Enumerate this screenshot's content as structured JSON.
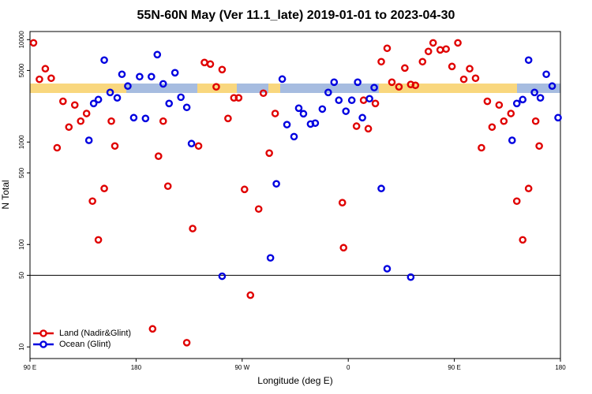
{
  "chart_data": {
    "type": "scatter",
    "title": "55N-60N May (Ver 11.1_late)   2019-01-01 to 2023-04-30",
    "x_label": "Longitude (deg E)",
    "y_label": "N Total",
    "xlim": [
      90,
      540
    ],
    "xticks": [
      {
        "value": 90,
        "label": "90 E"
      },
      {
        "value": 180,
        "label": "180"
      },
      {
        "value": 270,
        "label": "90 W"
      },
      {
        "value": 360,
        "label": "0"
      },
      {
        "value": 450,
        "label": "90 E"
      },
      {
        "value": 540,
        "label": "180"
      }
    ],
    "ylim": [
      7.7,
      12000
    ],
    "yticks": [
      10,
      50,
      100,
      500,
      1000,
      5000,
      10000
    ],
    "y_log": true,
    "reference_line": 50,
    "legend": "lower left",
    "series": [
      {
        "name": "Land (Nadir&Glint)",
        "color": "#e00000",
        "x": [
          93,
          98,
          103,
          108,
          113,
          118,
          123,
          128,
          133,
          138,
          143,
          148,
          153,
          159,
          162,
          194,
          199,
          203,
          207,
          223,
          228,
          233,
          238,
          243,
          248,
          253,
          258,
          263,
          267,
          272,
          277,
          284,
          288,
          293,
          298,
          355,
          356,
          367,
          373,
          377,
          383,
          388,
          393,
          397,
          403,
          408,
          413,
          417,
          423,
          428,
          432,
          438,
          443,
          448,
          453,
          458,
          463,
          468,
          473,
          478,
          482,
          488,
          492,
          498,
          503,
          508,
          513,
          519,
          522
        ],
        "values": [
          9300,
          4100,
          5200,
          4200,
          880,
          2500,
          1400,
          2300,
          1600,
          1900,
          265,
          111,
          352,
          1600,
          915,
          15,
          728,
          1600,
          371,
          11,
          143,
          915,
          5980,
          5770,
          3460,
          5100,
          1700,
          2700,
          2700,
          345,
          32,
          222,
          3000,
          780,
          1900,
          256,
          93,
          1430,
          2560,
          1350,
          2380,
          6090,
          8230,
          3840,
          3460,
          5280,
          3650,
          3580,
          6090,
          7670,
          9300,
          7940,
          8090,
          5470,
          9300,
          4100,
          5200,
          4200,
          880,
          2500,
          1400,
          2300,
          1600,
          1900,
          265,
          111,
          352,
          1600,
          915
        ]
      },
      {
        "name": "Ocean (Glint)",
        "color": "#0000e0",
        "x": [
          140,
          144,
          148,
          153,
          158,
          164,
          168,
          173,
          178,
          183,
          188,
          193,
          198,
          203,
          208,
          213,
          218,
          223,
          227,
          253,
          294,
          299,
          304,
          308,
          314,
          318,
          322,
          328,
          332,
          338,
          343,
          348,
          352,
          358,
          363,
          368,
          372,
          378,
          382,
          388,
          393,
          413,
          499,
          503,
          508,
          513,
          518,
          523,
          528,
          533,
          538
        ],
        "values": [
          1040,
          2380,
          2600,
          6310,
          3050,
          2700,
          4590,
          3520,
          1730,
          4350,
          1700,
          4350,
          7140,
          3700,
          2380,
          4750,
          2740,
          2180,
          966,
          49,
          74,
          391,
          4120,
          1480,
          1130,
          2140,
          1890,
          1500,
          1530,
          2100,
          3050,
          3840,
          2560,
          2000,
          2560,
          3840,
          1730,
          2650,
          3400,
          352,
          58,
          48,
          1040,
          2380,
          2600,
          6310,
          3050,
          2700,
          4590,
          3520,
          1730
        ]
      }
    ]
  }
}
